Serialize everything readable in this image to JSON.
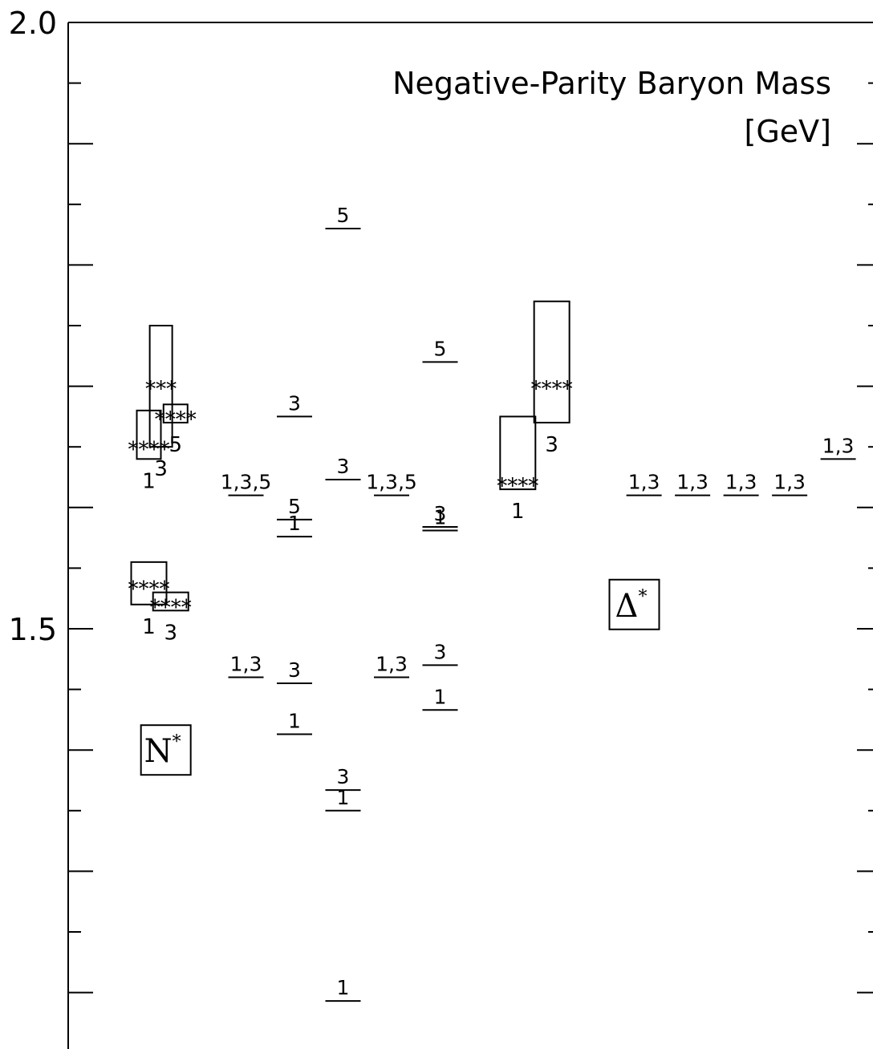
{
  "chart_data": {
    "type": "table",
    "title": "Negative-Parity Baryon Mass",
    "unit": "[GeV]",
    "ylabel": "",
    "ylim": [
      1.163,
      2.0
    ],
    "y_tick_labels": [
      {
        "value": 2.0,
        "text": "2.0"
      },
      {
        "value": 1.5,
        "text": "1.5"
      }
    ],
    "major_tick_values": [
      1.2,
      1.3,
      1.4,
      1.5,
      1.6,
      1.7,
      1.8,
      1.9,
      2.0
    ],
    "minor_tick_values": [
      1.25,
      1.35,
      1.45,
      1.55,
      1.65,
      1.75,
      1.85,
      1.95
    ],
    "group_labels": [
      {
        "text": "N",
        "sup": "*",
        "column": 1.35,
        "value": 1.4
      },
      {
        "text": "Δ",
        "sup": "*",
        "column": 11.0,
        "value": 1.52
      }
    ],
    "experiment_boxes": [
      {
        "column": 1.0,
        "mass": 1.535,
        "range": [
          1.52,
          1.555
        ],
        "stars": "****",
        "label": "1"
      },
      {
        "column": 1.45,
        "mass": 1.52,
        "range": [
          1.515,
          1.53
        ],
        "stars": "****",
        "label": "3"
      },
      {
        "column": 1.0,
        "mass": 1.65,
        "range": [
          1.64,
          1.68
        ],
        "stars": "****",
        "label": "1"
      },
      {
        "column": 1.25,
        "mass": 1.7,
        "range": [
          1.65,
          1.75
        ],
        "stars": "***",
        "label": "3"
      },
      {
        "column": 1.55,
        "mass": 1.675,
        "range": [
          1.67,
          1.685
        ],
        "stars": "****",
        "label": "5"
      },
      {
        "column": 8.6,
        "mass": 1.62,
        "range": [
          1.615,
          1.675
        ],
        "stars": "****",
        "label": "1"
      },
      {
        "column": 9.3,
        "mass": 1.7,
        "range": [
          1.67,
          1.77
        ],
        "stars": "****",
        "label": "3"
      }
    ],
    "model_levels": [
      {
        "column": 3.0,
        "mass": 1.61,
        "label": "1,3,5"
      },
      {
        "column": 3.0,
        "mass": 1.46,
        "label": "1,3"
      },
      {
        "column": 4.0,
        "mass": 1.675,
        "label": "3"
      },
      {
        "column": 4.0,
        "mass": 1.59,
        "label": "5"
      },
      {
        "column": 4.0,
        "mass": 1.576,
        "label": "1"
      },
      {
        "column": 4.0,
        "mass": 1.455,
        "label": "3"
      },
      {
        "column": 4.0,
        "mass": 1.413,
        "label": "1"
      },
      {
        "column": 5.0,
        "mass": 1.83,
        "label": "5"
      },
      {
        "column": 5.0,
        "mass": 1.623,
        "label": "3"
      },
      {
        "column": 5.0,
        "mass": 1.367,
        "label": "3"
      },
      {
        "column": 5.0,
        "mass": 1.35,
        "label": "1"
      },
      {
        "column": 5.0,
        "mass": 1.193,
        "label": "1"
      },
      {
        "column": 6.0,
        "mass": 1.61,
        "label": "1,3,5"
      },
      {
        "column": 6.0,
        "mass": 1.46,
        "label": "1,3"
      },
      {
        "column": 7.0,
        "mass": 1.72,
        "label": "5"
      },
      {
        "column": 7.0,
        "mass": 1.584,
        "label": "3"
      },
      {
        "column": 7.0,
        "mass": 1.581,
        "label": "1"
      },
      {
        "column": 7.0,
        "mass": 1.47,
        "label": "3"
      },
      {
        "column": 7.0,
        "mass": 1.433,
        "label": "1"
      },
      {
        "column": 11.2,
        "mass": 1.61,
        "label": "1,3"
      },
      {
        "column": 12.2,
        "mass": 1.61,
        "label": "1,3"
      },
      {
        "column": 13.2,
        "mass": 1.61,
        "label": "1,3"
      },
      {
        "column": 14.2,
        "mass": 1.61,
        "label": "1,3"
      },
      {
        "column": 15.2,
        "mass": 1.64,
        "label": "1,3"
      }
    ]
  }
}
